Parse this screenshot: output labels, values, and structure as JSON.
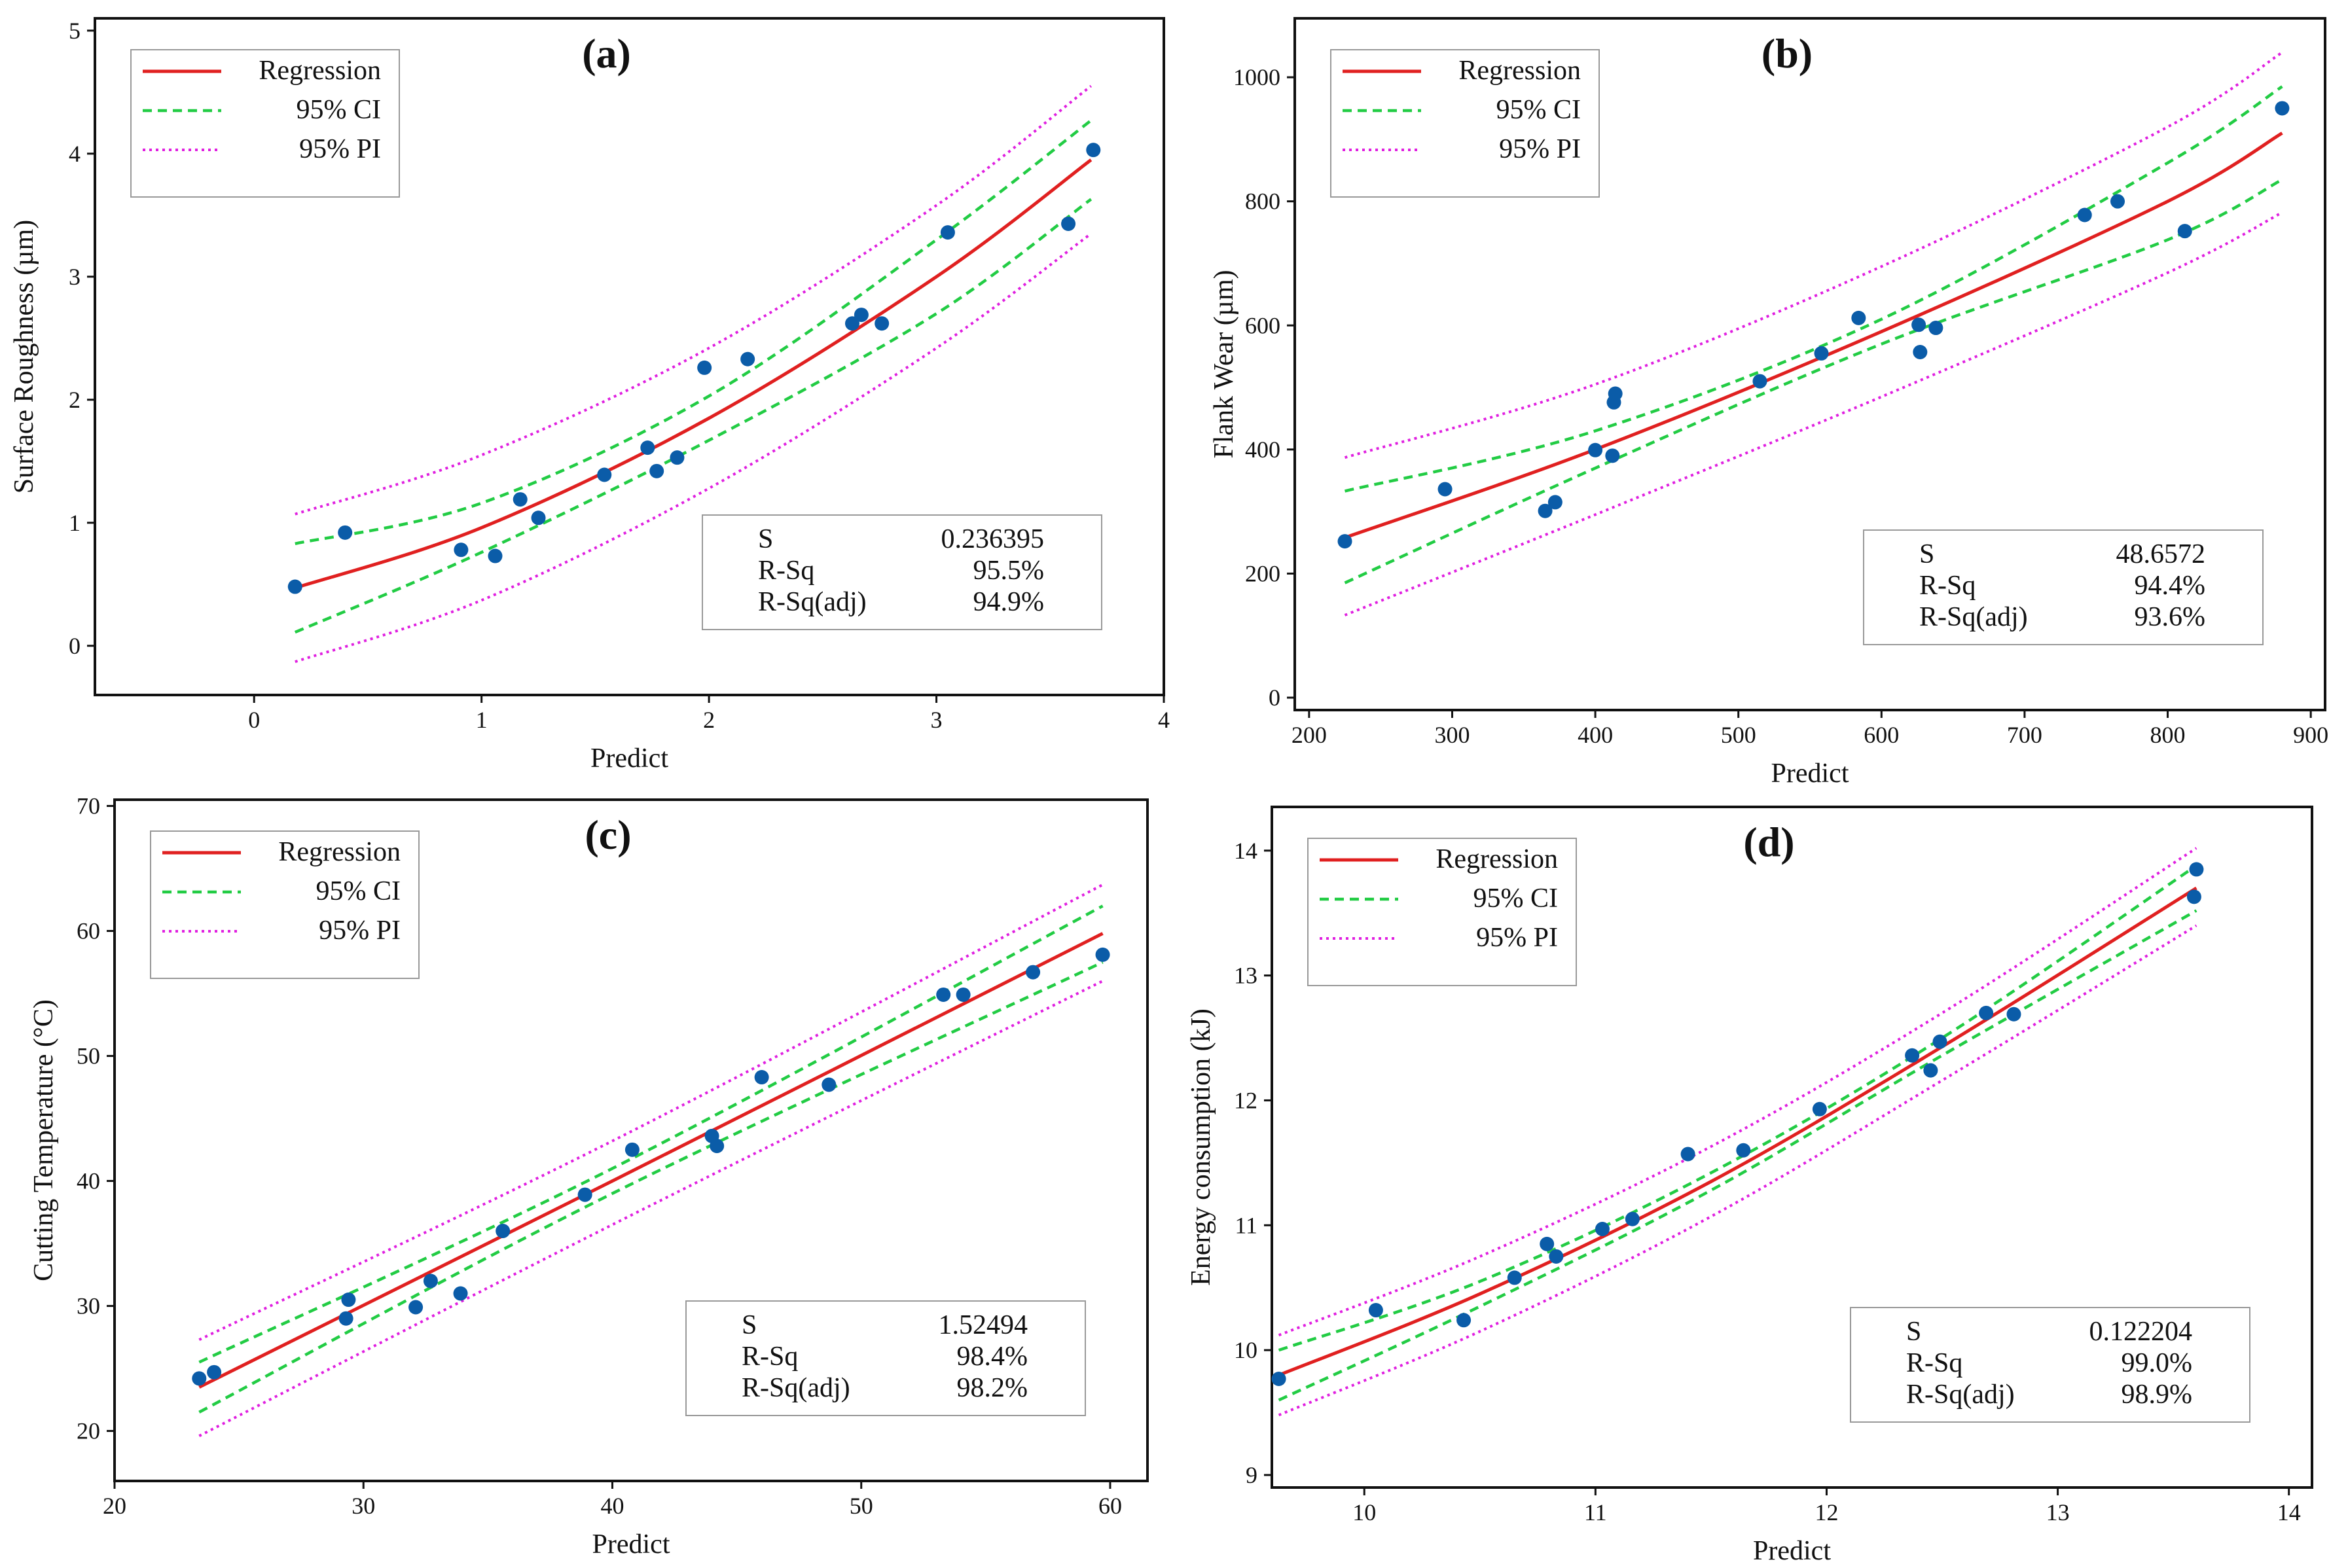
{
  "colors": {
    "regression": "#e02020",
    "ci": "#22cc44",
    "pi": "#e020e0",
    "points": "#0b5ca8"
  },
  "chart_data": [
    {
      "type": "scatter",
      "panel": "(a)",
      "xlabel": "Predict",
      "ylabel": "Surface Roughness (µm)",
      "xlim": [
        -0.7,
        4.0
      ],
      "ylim": [
        -0.4,
        5.1
      ],
      "xticks": [
        0,
        1,
        2,
        3,
        4
      ],
      "yticks": [
        0,
        1,
        2,
        3,
        4,
        5
      ],
      "legend": {
        "position": "top-left",
        "entries": [
          "Regression",
          "95% CI",
          "95% PI"
        ]
      },
      "stats": {
        "labels": [
          "S",
          "R-Sq",
          "R-Sq(adj)"
        ],
        "values": [
          "0.236395",
          "95.5%",
          "94.9%"
        ],
        "position": "bottom-right"
      },
      "curves": {
        "x": [
          0.18,
          1.0,
          2.0,
          3.0,
          3.68
        ],
        "regression": [
          0.47,
          0.96,
          1.85,
          3.0,
          3.95
        ],
        "ci_upper": [
          0.83,
          1.16,
          2.03,
          3.3,
          4.27
        ],
        "ci_lower": [
          0.11,
          0.76,
          1.67,
          2.7,
          3.63
        ],
        "pi_upper": [
          1.07,
          1.55,
          2.42,
          3.58,
          4.55
        ],
        "pi_lower": [
          -0.13,
          0.37,
          1.28,
          2.42,
          3.35
        ]
      },
      "points": {
        "x": [
          0.18,
          0.4,
          0.91,
          1.06,
          1.17,
          1.25,
          1.54,
          1.73,
          1.77,
          1.86,
          1.98,
          2.17,
          2.63,
          2.67,
          2.76,
          3.05,
          3.58,
          3.69
        ],
        "y": [
          0.48,
          0.92,
          0.78,
          0.73,
          1.19,
          1.04,
          1.39,
          1.61,
          1.42,
          1.53,
          2.26,
          2.33,
          2.62,
          2.69,
          2.62,
          3.36,
          3.43,
          4.03
        ]
      }
    },
    {
      "type": "scatter",
      "panel": "(b)",
      "xlabel": "Predict",
      "ylabel": "Flank Wear (µm)",
      "xlim": [
        190,
        910
      ],
      "ylim": [
        -20,
        1095
      ],
      "xticks": [
        200,
        300,
        400,
        500,
        600,
        700,
        800,
        900
      ],
      "yticks": [
        0,
        200,
        400,
        600,
        800,
        1000
      ],
      "legend": {
        "position": "top-left",
        "entries": [
          "Regression",
          "95% CI",
          "95% PI"
        ]
      },
      "stats": {
        "labels": [
          "S",
          "R-Sq",
          "R-Sq(adj)"
        ],
        "values": [
          "48.6572",
          "94.4%",
          "93.6%"
        ],
        "position": "bottom-right"
      },
      "curves": {
        "x": [
          225,
          400,
          600,
          800,
          880
        ],
        "regression": [
          258,
          400,
          590,
          800,
          910
        ],
        "ci_upper": [
          333,
          430,
          610,
          862,
          985
        ],
        "ci_lower": [
          185,
          370,
          570,
          738,
          835
        ],
        "pi_upper": [
          387,
          505,
          695,
          920,
          1040
        ],
        "pi_lower": [
          133,
          295,
          485,
          685,
          782
        ]
      },
      "points": {
        "x": [
          225,
          295,
          365,
          372,
          400,
          412,
          413,
          414,
          515,
          558,
          584,
          626,
          627,
          638,
          742,
          765,
          812,
          880
        ],
        "y": [
          252,
          336,
          301,
          315,
          399,
          390,
          476,
          490,
          510,
          555,
          612,
          601,
          557,
          596,
          778,
          800,
          752,
          950
        ]
      }
    },
    {
      "type": "scatter",
      "panel": "(c)",
      "xlabel": "Predict",
      "ylabel": "Cutting Temperature (°C)",
      "xlim": [
        20,
        61.5
      ],
      "ylim": [
        16,
        70.5
      ],
      "xticks": [
        20,
        30,
        40,
        50,
        60
      ],
      "yticks": [
        20,
        30,
        40,
        50,
        60,
        70
      ],
      "legend": {
        "position": "top-left",
        "entries": [
          "Regression",
          "95% CI",
          "95% PI"
        ]
      },
      "stats": {
        "labels": [
          "S",
          "R-Sq",
          "R-Sq(adj)"
        ],
        "values": [
          "1.52494",
          "98.4%",
          "98.2%"
        ],
        "position": "bottom-right"
      },
      "curves": {
        "x": [
          23.4,
          40,
          59.7
        ],
        "regression": [
          23.5,
          40.0,
          59.8
        ],
        "ci_upper": [
          25.5,
          41.0,
          62.0
        ],
        "ci_lower": [
          21.5,
          39.0,
          57.5
        ],
        "pi_upper": [
          27.3,
          43.2,
          63.7
        ],
        "pi_lower": [
          19.6,
          36.5,
          56.0
        ]
      },
      "points": {
        "x": [
          23.4,
          24.0,
          29.3,
          29.4,
          32.1,
          32.7,
          33.9,
          35.6,
          38.9,
          40.8,
          44.0,
          44.2,
          46.0,
          48.7,
          53.3,
          54.1,
          56.9,
          59.7
        ],
        "y": [
          24.2,
          24.7,
          29.0,
          30.5,
          29.9,
          32.0,
          31.0,
          36.0,
          38.9,
          42.5,
          43.6,
          42.8,
          48.3,
          47.7,
          54.9,
          54.9,
          56.7,
          58.1
        ]
      }
    },
    {
      "type": "scatter",
      "panel": "(d)",
      "xlabel": "Predict",
      "ylabel": "Energy consumption (kJ)",
      "xlim": [
        9.6,
        14.1
      ],
      "ylim": [
        8.9,
        14.35
      ],
      "xticks": [
        10,
        11,
        12,
        13,
        14
      ],
      "yticks": [
        9,
        10,
        11,
        12,
        13,
        14
      ],
      "legend": {
        "position": "top-left",
        "entries": [
          "Regression",
          "95% CI",
          "95% PI"
        ]
      },
      "stats": {
        "labels": [
          "S",
          "R-Sq",
          "R-Sq(adj)"
        ],
        "values": [
          "0.122204",
          "99.0%",
          "98.9%"
        ],
        "position": "bottom-right"
      },
      "curves": {
        "x": [
          9.63,
          10.5,
          11.5,
          12.5,
          13.6
        ],
        "regression": [
          9.8,
          10.45,
          11.35,
          12.43,
          13.7
        ],
        "ci_upper": [
          10.0,
          10.55,
          11.42,
          12.5,
          13.88
        ],
        "ci_lower": [
          9.6,
          10.35,
          11.28,
          12.36,
          13.52
        ],
        "pi_upper": [
          10.12,
          10.75,
          11.63,
          12.7,
          14.02
        ],
        "pi_lower": [
          9.48,
          10.15,
          11.07,
          12.16,
          13.4
        ]
      },
      "points": {
        "x": [
          9.63,
          10.05,
          10.43,
          10.65,
          10.79,
          10.83,
          11.03,
          11.16,
          11.4,
          11.64,
          11.97,
          12.37,
          12.45,
          12.49,
          12.69,
          12.81,
          13.59,
          13.6
        ],
        "y": [
          9.77,
          10.32,
          10.24,
          10.58,
          10.85,
          10.75,
          10.97,
          11.05,
          11.57,
          11.6,
          11.93,
          12.36,
          12.24,
          12.47,
          12.7,
          12.69,
          13.63,
          13.85
        ]
      }
    }
  ]
}
